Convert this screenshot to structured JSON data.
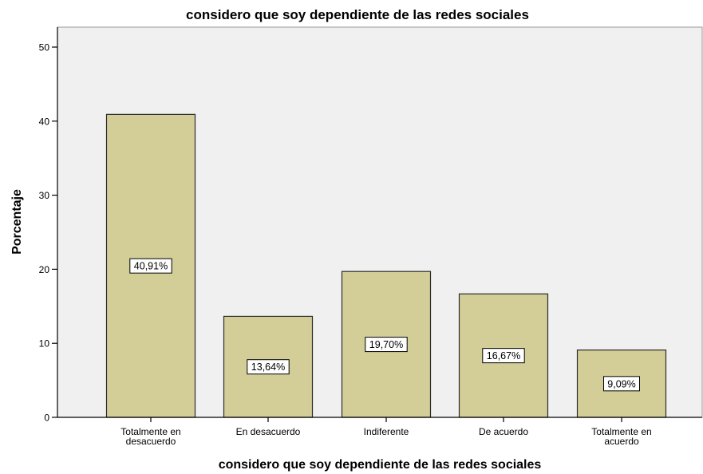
{
  "chart_data": {
    "type": "bar",
    "title": "considero que soy dependiente de las redes sociales",
    "xlabel": "considero que soy dependiente de las redes sociales",
    "ylabel": "Porcentaje",
    "categories": [
      [
        "Totalmente en",
        "desacuerdo"
      ],
      [
        "En desacuerdo"
      ],
      [
        "Indiferente"
      ],
      [
        "De acuerdo"
      ],
      [
        "Totalmente en",
        "acuerdo"
      ]
    ],
    "values": [
      40.91,
      13.64,
      19.7,
      16.67,
      9.09
    ],
    "data_labels": [
      "40,91%",
      "13,64%",
      "19,70%",
      "16,67%",
      "9,09%"
    ],
    "yticks": [
      0,
      10,
      20,
      30,
      40,
      50
    ],
    "ylim": [
      0,
      50
    ],
    "grid": false,
    "legend": "none",
    "colors": {
      "bar_fill": "#D3CE97",
      "bar_stroke": "#2b2b2b",
      "plot_background": "#F0F0F0",
      "label_box": "#ffffff"
    }
  }
}
